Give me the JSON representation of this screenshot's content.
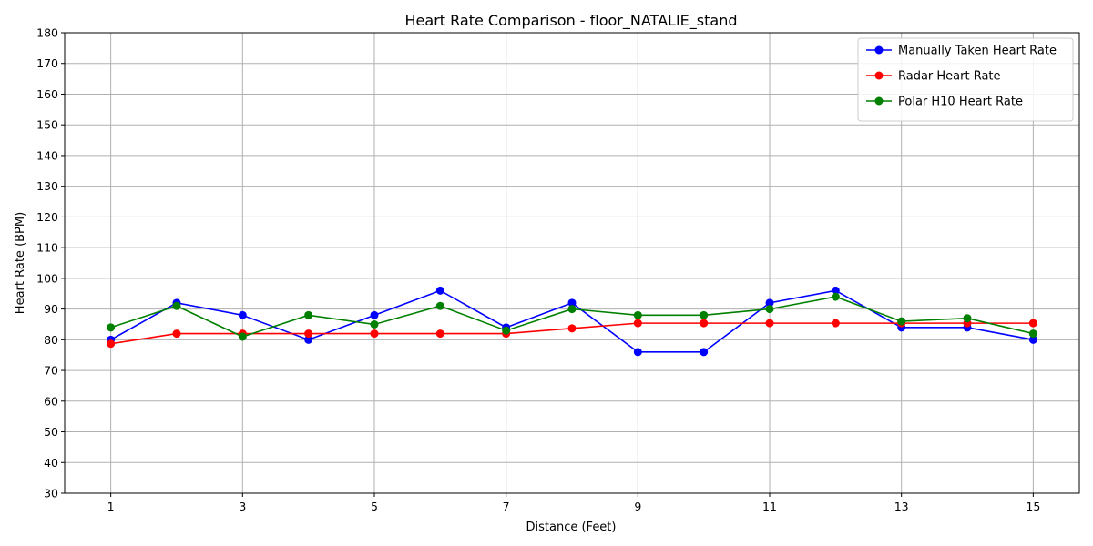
{
  "chart_data": {
    "type": "line",
    "title": "Heart Rate Comparison - floor_NATALIE_stand",
    "xlabel": "Distance (Feet)",
    "ylabel": "Heart Rate (BPM)",
    "x": [
      1,
      2,
      3,
      4,
      5,
      6,
      7,
      8,
      9,
      10,
      11,
      12,
      13,
      14,
      15
    ],
    "xticks": [
      1,
      3,
      5,
      7,
      9,
      11,
      13,
      15
    ],
    "xlim": [
      0.3,
      15.7
    ],
    "ylim": [
      30,
      180
    ],
    "yticks": [
      30,
      40,
      50,
      60,
      70,
      80,
      90,
      100,
      110,
      120,
      130,
      140,
      150,
      160,
      170,
      180
    ],
    "grid": true,
    "legend_position": "top-right",
    "series": [
      {
        "name": "Manually Taken Heart Rate",
        "color": "#0000ff",
        "values": [
          80,
          92,
          88,
          80,
          88,
          96,
          84,
          92,
          76,
          76,
          92,
          96,
          84,
          84,
          80
        ]
      },
      {
        "name": "Radar Heart Rate",
        "color": "#ff0000",
        "values": [
          78.7,
          82,
          82,
          82,
          82,
          82,
          82,
          83.7,
          85.4,
          85.4,
          85.4,
          85.4,
          85.4,
          85.4,
          85.4
        ]
      },
      {
        "name": "Polar H10 Heart Rate",
        "color": "#008000",
        "values": [
          84,
          91,
          81,
          88,
          85,
          91,
          83,
          90,
          88,
          88,
          90,
          94,
          86,
          87,
          82
        ]
      }
    ]
  }
}
